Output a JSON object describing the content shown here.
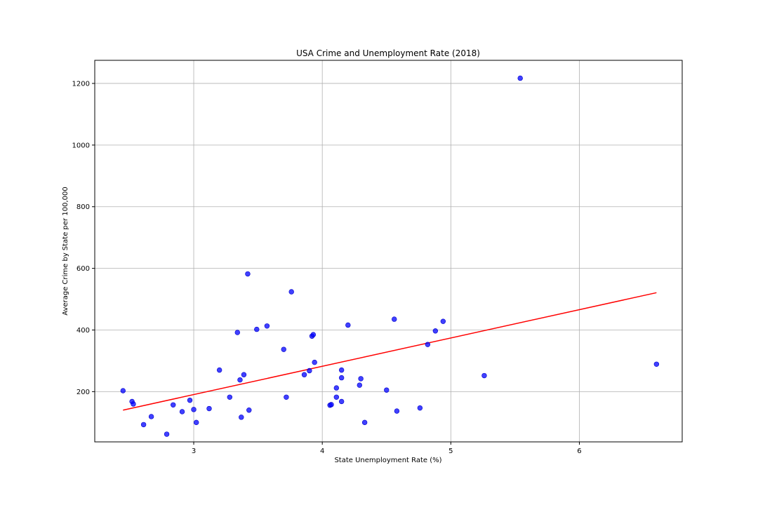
{
  "chart_data": {
    "type": "scatter",
    "title": "USA Crime and Unemployment Rate (2018)",
    "xlabel": "State Unemployment Rate (%)",
    "ylabel": "Average Crime by State per 100,000",
    "xlim": [
      2.23,
      6.8
    ],
    "ylim": [
      37,
      1275
    ],
    "xticks": [
      3,
      4,
      5,
      6
    ],
    "yticks": [
      200,
      400,
      600,
      800,
      1000,
      1200
    ],
    "grid": true,
    "colors": {
      "points": "#0000ff",
      "regression": "#ff0000"
    },
    "points": [
      {
        "x": 2.45,
        "y": 203
      },
      {
        "x": 2.52,
        "y": 168
      },
      {
        "x": 2.53,
        "y": 160
      },
      {
        "x": 2.61,
        "y": 93
      },
      {
        "x": 2.67,
        "y": 119
      },
      {
        "x": 2.79,
        "y": 62
      },
      {
        "x": 2.84,
        "y": 157
      },
      {
        "x": 2.91,
        "y": 135
      },
      {
        "x": 2.97,
        "y": 172
      },
      {
        "x": 3.0,
        "y": 142
      },
      {
        "x": 3.02,
        "y": 100
      },
      {
        "x": 3.12,
        "y": 145
      },
      {
        "x": 3.2,
        "y": 270
      },
      {
        "x": 3.28,
        "y": 182
      },
      {
        "x": 3.34,
        "y": 392
      },
      {
        "x": 3.36,
        "y": 238
      },
      {
        "x": 3.37,
        "y": 117
      },
      {
        "x": 3.39,
        "y": 255
      },
      {
        "x": 3.42,
        "y": 582
      },
      {
        "x": 3.43,
        "y": 140
      },
      {
        "x": 3.49,
        "y": 402
      },
      {
        "x": 3.57,
        "y": 413
      },
      {
        "x": 3.7,
        "y": 337
      },
      {
        "x": 3.72,
        "y": 182
      },
      {
        "x": 3.76,
        "y": 524
      },
      {
        "x": 3.86,
        "y": 255
      },
      {
        "x": 3.9,
        "y": 268
      },
      {
        "x": 3.92,
        "y": 380
      },
      {
        "x": 3.93,
        "y": 385
      },
      {
        "x": 3.94,
        "y": 295
      },
      {
        "x": 4.06,
        "y": 156
      },
      {
        "x": 4.07,
        "y": 158
      },
      {
        "x": 4.11,
        "y": 212
      },
      {
        "x": 4.11,
        "y": 182
      },
      {
        "x": 4.15,
        "y": 270
      },
      {
        "x": 4.15,
        "y": 245
      },
      {
        "x": 4.15,
        "y": 168
      },
      {
        "x": 4.2,
        "y": 416
      },
      {
        "x": 4.29,
        "y": 221
      },
      {
        "x": 4.3,
        "y": 242
      },
      {
        "x": 4.33,
        "y": 100
      },
      {
        "x": 4.5,
        "y": 205
      },
      {
        "x": 4.56,
        "y": 435
      },
      {
        "x": 4.58,
        "y": 137
      },
      {
        "x": 4.76,
        "y": 147
      },
      {
        "x": 4.82,
        "y": 353
      },
      {
        "x": 4.88,
        "y": 397
      },
      {
        "x": 4.94,
        "y": 428
      },
      {
        "x": 5.26,
        "y": 252
      },
      {
        "x": 5.54,
        "y": 1217
      },
      {
        "x": 6.6,
        "y": 289
      }
    ],
    "regression_line": {
      "x": [
        2.45,
        6.6
      ],
      "y": [
        140,
        521
      ]
    }
  }
}
